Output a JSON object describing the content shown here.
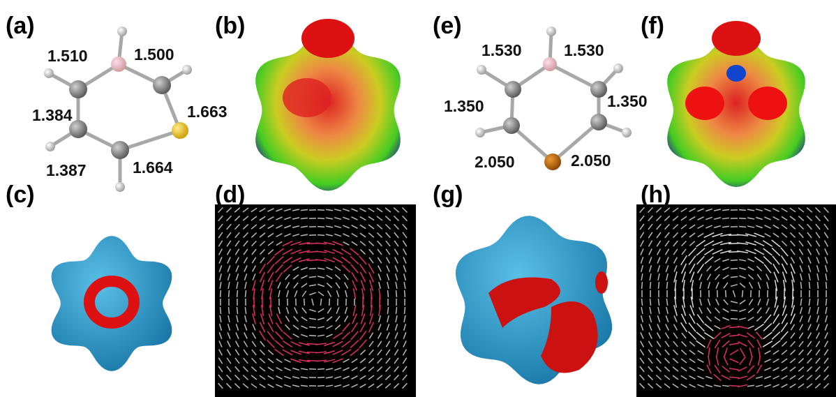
{
  "panels": [
    {
      "label": "(a)",
      "bonds": [
        "1.510",
        "1.500",
        "1.384",
        "1.663",
        "1.387",
        "1.664"
      ]
    },
    {
      "label": "(b)"
    },
    {
      "label": "(c)"
    },
    {
      "label": "(d)"
    },
    {
      "label": "(e)",
      "bonds": [
        "1.530",
        "1.530",
        "1.350",
        "1.350",
        "2.050",
        "2.050"
      ]
    },
    {
      "label": "(f)"
    },
    {
      "label": "(g)"
    },
    {
      "label": "(h)"
    }
  ]
}
